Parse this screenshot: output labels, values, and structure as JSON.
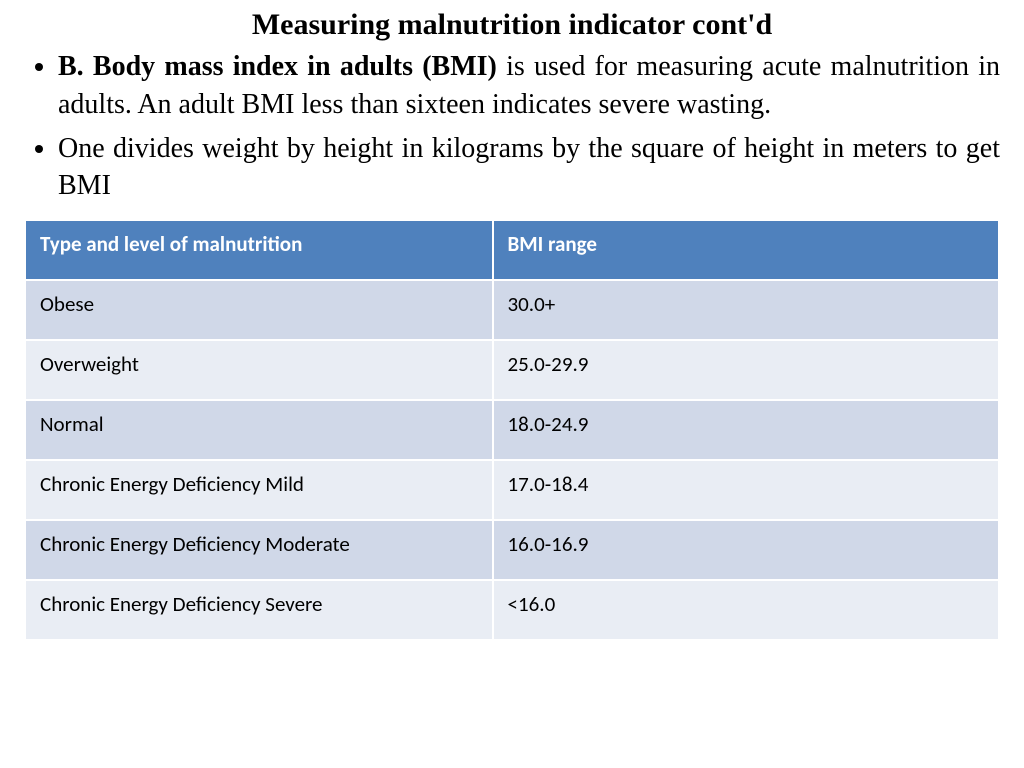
{
  "title": "Measuring malnutrition indicator cont'd",
  "bullets": [
    {
      "lead": "B. Body mass index in adults (BMI)",
      "rest": " is used for measuring acute malnutrition in adults. An adult BMI less than sixteen indicates severe wasting."
    },
    {
      "lead": "",
      "rest": "One divides weight by height in kilograms by the square of height in meters to get BMI"
    }
  ],
  "table": {
    "header_bg": "#4f81bd",
    "header_fg": "#ffffff",
    "row_colors": [
      "#d0d8e8",
      "#e9edf4"
    ],
    "columns": [
      "Type and level of malnutrition",
      "BMI range"
    ],
    "rows": [
      [
        "Obese",
        "30.0+"
      ],
      [
        "Overweight",
        "25.0-29.9"
      ],
      [
        "Normal",
        "18.0-24.9"
      ],
      [
        "Chronic Energy Deficiency Mild",
        "17.0-18.4"
      ],
      [
        "Chronic Energy Deficiency Moderate",
        "16.0-16.9"
      ],
      [
        "Chronic Energy Deficiency Severe",
        "<16.0"
      ]
    ]
  }
}
